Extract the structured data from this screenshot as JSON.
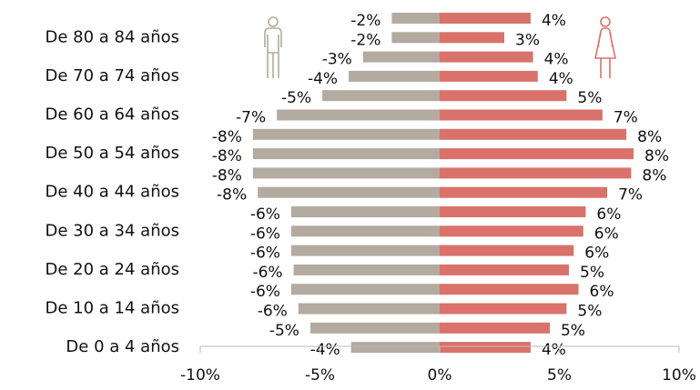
{
  "chart_data": {
    "type": "pyramid",
    "categories": [
      null,
      "De 80 a 84 años",
      null,
      "De 70 a 74 años",
      null,
      "De 60 a 64 años",
      null,
      "De 50 a 54 años",
      null,
      "De 40 a 44 años",
      null,
      "De 30 a 34 años",
      null,
      "De 20 a 24 años",
      null,
      "De 10 a 14 años",
      null,
      "De 0 a 4 años"
    ],
    "series": [
      {
        "color": "#b3aaa0",
        "side": "left",
        "values": [
          -2.0,
          -2.0,
          -3.2,
          -3.8,
          -4.9,
          -6.8,
          -7.8,
          -7.8,
          -7.8,
          -7.6,
          -6.2,
          -6.2,
          -6.2,
          -6.1,
          -6.2,
          -5.9,
          -5.4,
          -3.7
        ],
        "value_labels": [
          "-2%",
          "-2%",
          "-3%",
          "-4%",
          "-5%",
          "-7%",
          "-8%",
          "-8%",
          "-8%",
          "-8%",
          "-6%",
          "-6%",
          "-6%",
          "-6%",
          "-6%",
          "-6%",
          "-5%",
          "-4%"
        ]
      },
      {
        "color": "#d9726b",
        "side": "right",
        "values": [
          3.8,
          2.7,
          3.9,
          4.1,
          5.3,
          6.8,
          7.8,
          8.1,
          8.0,
          7.0,
          6.1,
          6.0,
          5.6,
          5.4,
          5.8,
          5.3,
          4.6,
          3.8
        ],
        "value_labels": [
          "4%",
          "3%",
          "4%",
          "4%",
          "5%",
          "7%",
          "8%",
          "8%",
          "8%",
          "7%",
          "6%",
          "6%",
          "6%",
          "5%",
          "6%",
          "5%",
          "5%",
          "4%"
        ]
      }
    ],
    "xlim": [
      -10,
      10
    ],
    "xticks": [
      {
        "value": -10,
        "label": "-10%"
      },
      {
        "value": -5,
        "label": "-5%"
      },
      {
        "value": 0,
        "label": "0%"
      },
      {
        "value": 5,
        "label": "5%"
      },
      {
        "value": 10,
        "label": "10%"
      }
    ]
  }
}
